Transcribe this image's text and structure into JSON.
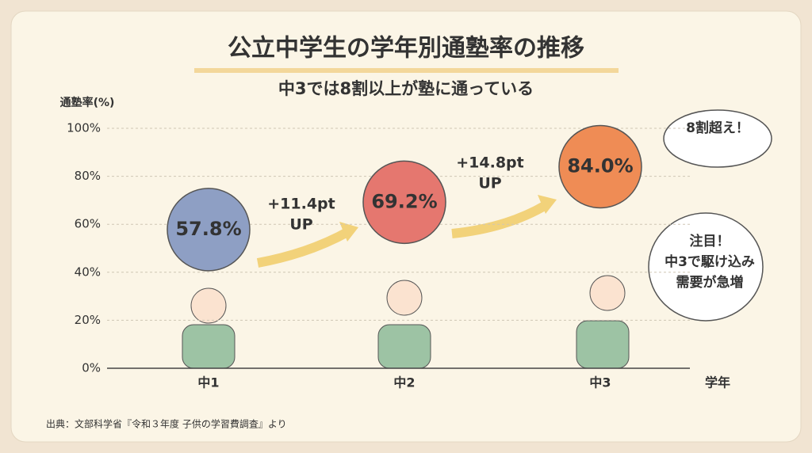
{
  "chart_data": {
    "type": "bubble-points",
    "title": "公立中学生の学年別通塾率の推移",
    "subtitle": "中3では8割以上が塾に通っている",
    "ylabel": "通塾率(%)",
    "xlabel": "学年",
    "categories": [
      "中1",
      "中2",
      "中3"
    ],
    "values": [
      57.8,
      69.2,
      84.0
    ],
    "value_labels": [
      "57.8%",
      "69.2%",
      "84.0%"
    ],
    "colors": [
      "#8e9fc4",
      "#e5776f",
      "#ef8c55"
    ],
    "ylim": [
      0,
      100
    ],
    "yticks": [
      {
        "value": 0,
        "label": "0%"
      },
      {
        "value": 20,
        "label": "20%"
      },
      {
        "value": 40,
        "label": "40%"
      },
      {
        "value": 60,
        "label": "60%"
      },
      {
        "value": 80,
        "label": "80%"
      },
      {
        "value": 100,
        "label": "100%"
      }
    ],
    "grid": true,
    "annotations": [
      [
        "+11.4pt",
        "UP"
      ],
      [
        "+14.8pt",
        "UP"
      ]
    ],
    "callouts": [
      [
        "8割超え！"
      ],
      [
        "注目！",
        "中3で駆け込み",
        "需要が急増"
      ]
    ],
    "source": "出典：文部科学省『令和３年度 子供の学習費調査』より"
  }
}
